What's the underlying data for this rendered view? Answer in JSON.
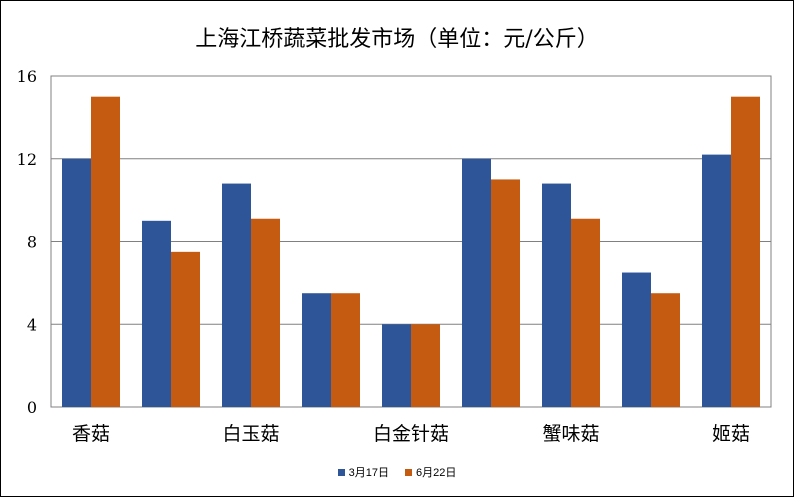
{
  "chart_data": {
    "type": "bar",
    "title": "上海江桥蔬菜批发市场（单位：元/公斤）",
    "categories": [
      "香菇",
      "",
      "白玉菇",
      "",
      "白金针菇",
      "",
      "蟹味菇",
      "",
      "姬菇"
    ],
    "series": [
      {
        "name": "3月17日",
        "color": "#2E5597",
        "values": [
          12,
          9,
          10.8,
          5.5,
          4,
          12,
          10.8,
          6.5,
          12.2
        ]
      },
      {
        "name": "6月22日",
        "color": "#C55A11",
        "values": [
          15,
          7.5,
          9.1,
          5.5,
          4,
          11,
          9.1,
          5.5,
          15
        ]
      }
    ],
    "ylim": [
      0,
      16
    ],
    "yticks": [
      "0",
      "4",
      "8",
      "12",
      "16"
    ],
    "grid": true,
    "legend_position": "bottom"
  }
}
